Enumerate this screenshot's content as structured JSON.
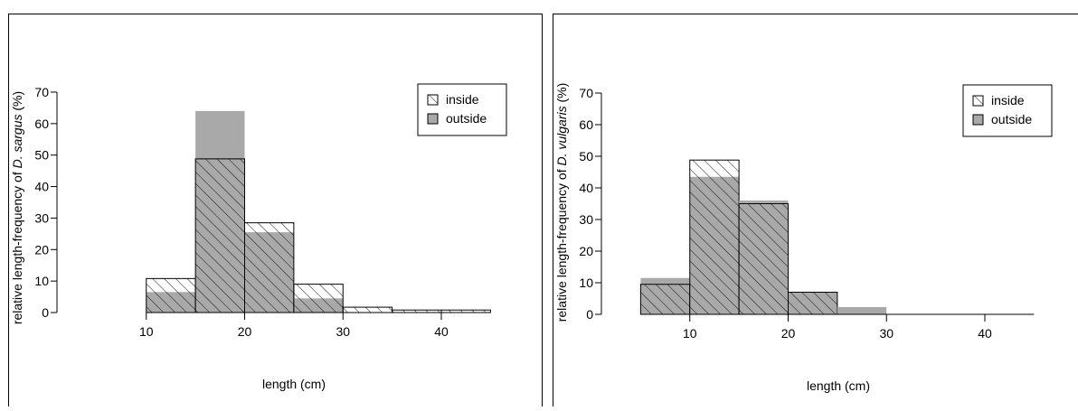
{
  "chart_data": [
    {
      "type": "bar",
      "chart_kind": "overlaid histogram",
      "xlabel": "length (cm)",
      "ylabel_prefix": "relative length-frequency of ",
      "ylabel_species": "D. sargus",
      "ylabel_suffix": " (%)",
      "x_ticks": [
        "10",
        "20",
        "30",
        "40"
      ],
      "y_ticks": [
        "0",
        "10",
        "20",
        "30",
        "40",
        "50",
        "60",
        "70"
      ],
      "xlim": [
        5,
        45
      ],
      "ylim": [
        0,
        70
      ],
      "legend_position": "top-right",
      "colors": {
        "outside": "#a9a9a9",
        "inside": "#ffffff",
        "hatch": "#000000"
      },
      "bin_edges": [
        10,
        15,
        20,
        25,
        30,
        35,
        40,
        45
      ],
      "series": [
        {
          "name": "inside",
          "style": "hatched",
          "values": [
            10.8,
            48.8,
            28.5,
            9,
            1.7,
            0.8,
            0.8
          ]
        },
        {
          "name": "outside",
          "style": "solid grey",
          "values": [
            6.5,
            64,
            25.5,
            4.5,
            0,
            0,
            0
          ]
        }
      ]
    },
    {
      "type": "bar",
      "chart_kind": "overlaid histogram",
      "xlabel": "length (cm)",
      "ylabel_prefix": "relative length-frequency of ",
      "ylabel_species": "D. vulgaris",
      "ylabel_suffix": " (%)",
      "x_ticks": [
        "10",
        "20",
        "30",
        "40"
      ],
      "y_ticks": [
        "0",
        "10",
        "20",
        "30",
        "40",
        "50",
        "60",
        "70"
      ],
      "xlim": [
        5,
        45
      ],
      "ylim": [
        0,
        70
      ],
      "legend_position": "top-right",
      "colors": {
        "outside": "#a9a9a9",
        "inside": "#ffffff",
        "hatch": "#000000"
      },
      "bin_edges": [
        5,
        10,
        15,
        20,
        25,
        30,
        35,
        40,
        45
      ],
      "series": [
        {
          "name": "inside",
          "style": "hatched",
          "values": [
            9.5,
            48.8,
            35,
            7,
            0,
            0,
            0,
            0
          ]
        },
        {
          "name": "outside",
          "style": "solid grey",
          "values": [
            11.5,
            43.5,
            36,
            7,
            2.3,
            0,
            0,
            0
          ]
        }
      ]
    }
  ]
}
